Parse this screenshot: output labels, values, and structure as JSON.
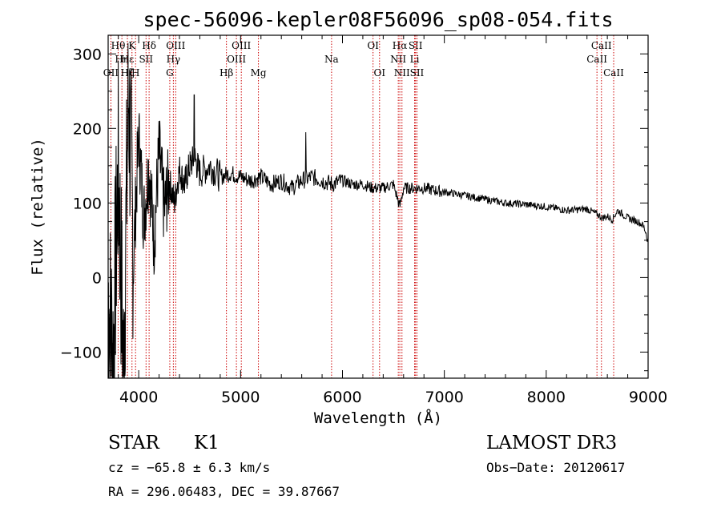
{
  "chart_data": {
    "type": "line",
    "title": "spec-56096-kepler08F56096_sp08-054.fits",
    "xlabel": "Wavelength (Å)",
    "ylabel": "Flux (relative)",
    "xlim": [
      3700,
      9000
    ],
    "ylim": [
      -135,
      325
    ],
    "xticks": [
      4000,
      5000,
      6000,
      7000,
      8000,
      9000
    ],
    "xtick_labels": [
      "4000",
      "5000",
      "6000",
      "7000",
      "8000",
      "9000"
    ],
    "yticks": [
      -100,
      0,
      100,
      200,
      300
    ],
    "ytick_labels": [
      "−100",
      "0",
      "100",
      "200",
      "300"
    ],
    "line_color": "#000000",
    "marker_color": "#cc0000",
    "spectrum": {
      "x": [
        3700,
        3750,
        3800,
        3850,
        3900,
        3950,
        4000,
        4050,
        4100,
        4150,
        4200,
        4250,
        4300,
        4350,
        4400,
        4450,
        4500,
        4550,
        4600,
        4700,
        4800,
        4900,
        5000,
        5100,
        5200,
        5300,
        5400,
        5500,
        5600,
        5700,
        5800,
        5900,
        6000,
        6100,
        6200,
        6300,
        6400,
        6500,
        6563,
        6600,
        6700,
        6800,
        6900,
        7000,
        7200,
        7400,
        7600,
        7800,
        8000,
        8200,
        8400,
        8500,
        8550,
        8600,
        8650,
        8700,
        8800,
        8900,
        8950,
        8980,
        9000
      ],
      "y": [
        -20,
        -100,
        150,
        -120,
        250,
        30,
        190,
        80,
        150,
        50,
        170,
        90,
        130,
        100,
        145,
        125,
        150,
        160,
        140,
        150,
        135,
        140,
        135,
        130,
        135,
        125,
        130,
        120,
        130,
        135,
        130,
        125,
        130,
        125,
        125,
        120,
        120,
        125,
        95,
        120,
        120,
        120,
        117,
        115,
        110,
        105,
        100,
        98,
        95,
        90,
        92,
        85,
        80,
        82,
        78,
        90,
        80,
        75,
        70,
        60,
        45
      ]
    },
    "spikes": [
      {
        "x": 4545,
        "y": 245
      },
      {
        "x": 5640,
        "y": 195
      }
    ],
    "lines": [
      {
        "label": "Hθ",
        "x": 3798,
        "row": 1
      },
      {
        "label": "K",
        "x": 3934,
        "row": 1
      },
      {
        "label": "Hδ",
        "x": 4102,
        "row": 1
      },
      {
        "label": "OIII",
        "x": 4363,
        "row": 1
      },
      {
        "label": "OIII",
        "x": 5007,
        "row": 1
      },
      {
        "label": "OI",
        "x": 6300,
        "row": 1
      },
      {
        "label": "Hα",
        "x": 6563,
        "row": 1
      },
      {
        "label": "SII",
        "x": 6717,
        "row": 1
      },
      {
        "label": "CaII",
        "x": 8542,
        "row": 1
      },
      {
        "label": "Hη",
        "x": 3835,
        "row": 2
      },
      {
        "label": "Hε",
        "x": 3889,
        "row": 2
      },
      {
        "label": "SII",
        "x": 4072,
        "row": 2
      },
      {
        "label": "Hγ",
        "x": 4340,
        "row": 2
      },
      {
        "label": "OIII",
        "x": 4959,
        "row": 2
      },
      {
        "label": "Na",
        "x": 5893,
        "row": 2
      },
      {
        "label": "NII",
        "x": 6548,
        "row": 2
      },
      {
        "label": "Li",
        "x": 6708,
        "row": 2
      },
      {
        "label": "CaII",
        "x": 8498,
        "row": 2
      },
      {
        "label": "OII",
        "x": 3727,
        "row": 3
      },
      {
        "label": "Hζ",
        "x": 3889,
        "row": 3
      },
      {
        "label": "H",
        "x": 3969,
        "row": 3
      },
      {
        "label": "G",
        "x": 4305,
        "row": 3
      },
      {
        "label": "Hβ",
        "x": 4861,
        "row": 3
      },
      {
        "label": "Mg",
        "x": 5175,
        "row": 3
      },
      {
        "label": "OI",
        "x": 6364,
        "row": 3
      },
      {
        "label": "NII",
        "x": 6584,
        "row": 3
      },
      {
        "label": "SII",
        "x": 6731,
        "row": 3
      },
      {
        "label": "CaII",
        "x": 8662,
        "row": 3
      }
    ]
  },
  "info": {
    "class": "STAR",
    "subclass": "K1",
    "survey": "LAMOST DR3",
    "cz": "cz = −65.8 ± 6.3 km/s",
    "obs_date": "Obs−Date: 20120617",
    "coords": "RA = 296.06483, DEC =  39.87667"
  }
}
